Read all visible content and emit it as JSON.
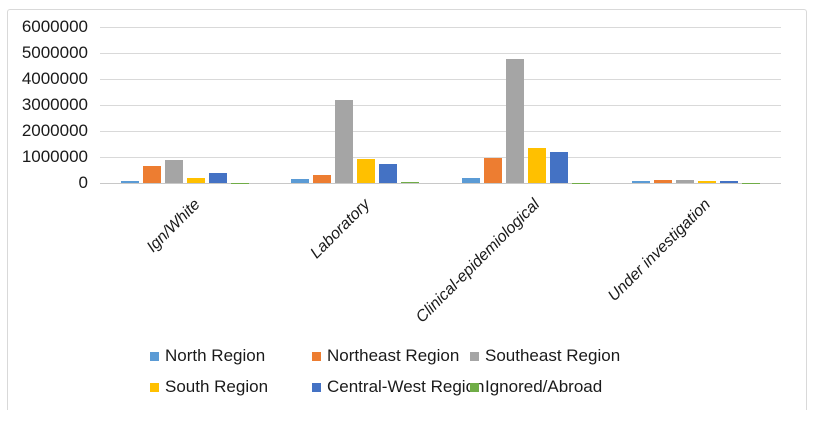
{
  "chart_data": {
    "type": "bar",
    "title": "",
    "categories": [
      "Ign/White",
      "Laboratory",
      "Clinical-epidemiological",
      "Under investigation"
    ],
    "series": [
      {
        "name": "North Region",
        "color": "#5B9BD5",
        "values": [
          80000,
          160000,
          180000,
          90000
        ]
      },
      {
        "name": "Northeast Region",
        "color": "#ED7D31",
        "values": [
          650000,
          310000,
          960000,
          110000
        ]
      },
      {
        "name": "Southeast Region",
        "color": "#A5A5A5",
        "values": [
          880000,
          3200000,
          4780000,
          100000
        ]
      },
      {
        "name": "South Region",
        "color": "#FFC000",
        "values": [
          200000,
          930000,
          1340000,
          75000
        ]
      },
      {
        "name": "Central-West Region",
        "color": "#4472C4",
        "values": [
          400000,
          740000,
          1190000,
          75000
        ]
      },
      {
        "name": "Ignored/Abroad",
        "color": "#70AD47",
        "values": [
          10000,
          50000,
          10000,
          5000
        ]
      }
    ],
    "y_axis": {
      "min": 0,
      "max": 6000000,
      "tick_interval": 1000000,
      "tick_labels": [
        "0",
        "1000000",
        "2000000",
        "3000000",
        "4000000",
        "5000000",
        "6000000"
      ]
    },
    "grid": true,
    "legend_position": "bottom",
    "x_labels_rotation_deg": 45,
    "x_labels_italic": true
  }
}
